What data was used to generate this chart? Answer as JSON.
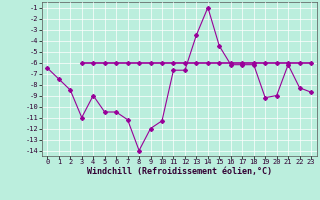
{
  "hours": [
    0,
    1,
    2,
    3,
    4,
    5,
    6,
    7,
    8,
    9,
    10,
    11,
    12,
    13,
    14,
    15,
    16,
    17,
    18,
    19,
    20,
    21,
    22,
    23
  ],
  "windchill": [
    -6.5,
    -7.5,
    -8.5,
    -11.0,
    -9.0,
    -10.5,
    -10.5,
    -11.2,
    -14.0,
    -12.0,
    -11.3,
    -6.7,
    -6.7,
    -3.5,
    -1.0,
    -4.5,
    -6.2,
    -6.2,
    -6.2,
    -9.2,
    -9.0,
    -6.2,
    -8.3,
    -8.7
  ],
  "flat_hours": [
    3,
    4,
    5,
    6,
    7,
    8,
    9,
    10,
    11,
    12,
    13,
    14,
    15,
    16,
    17,
    18,
    19,
    20,
    21,
    22,
    23
  ],
  "flat_values": [
    -6.0,
    -6.0,
    -6.0,
    -6.0,
    -6.0,
    -6.0,
    -6.0,
    -6.0,
    -6.0,
    -6.0,
    -6.0,
    -6.0,
    -6.0,
    -6.0,
    -6.0,
    -6.0,
    -6.0,
    -6.0,
    -6.0,
    -6.0,
    -6.0
  ],
  "line_color": "#990099",
  "marker": "D",
  "markersize": 2.0,
  "linewidth": 0.8,
  "background_color": "#bbeedd",
  "grid_color": "#ffffff",
  "xlabel": "Windchill (Refroidissement éolien,°C)",
  "ylim": [
    -14.5,
    -0.5
  ],
  "xlim": [
    -0.5,
    23.5
  ],
  "yticks": [
    -1,
    -2,
    -3,
    -4,
    -5,
    -6,
    -7,
    -8,
    -9,
    -10,
    -11,
    -12,
    -13,
    -14
  ],
  "xticks": [
    0,
    1,
    2,
    3,
    4,
    5,
    6,
    7,
    8,
    9,
    10,
    11,
    12,
    13,
    14,
    15,
    16,
    17,
    18,
    19,
    20,
    21,
    22,
    23
  ],
  "tick_fontsize": 5.0,
  "xlabel_fontsize": 6.0
}
